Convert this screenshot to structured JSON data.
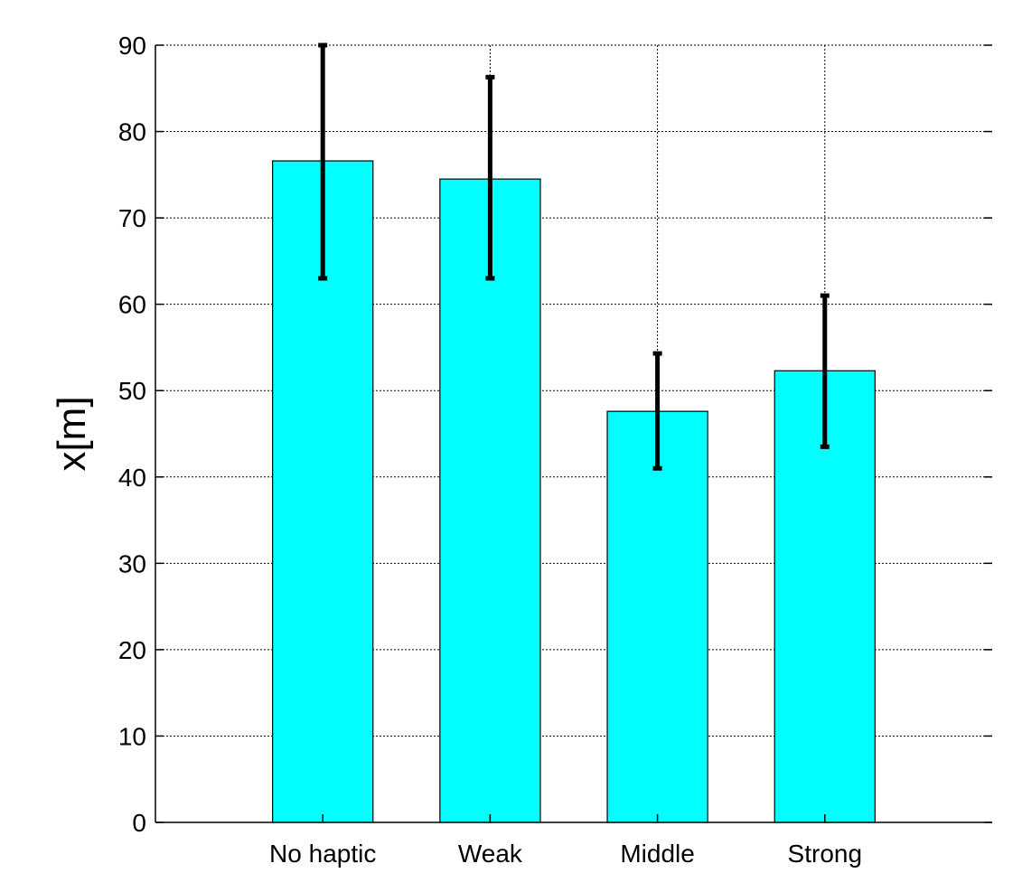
{
  "chart_data": {
    "type": "bar",
    "title": "",
    "xlabel": "",
    "ylabel": "x[m]",
    "categories": [
      "No haptic",
      "Weak",
      "Middle",
      "Strong"
    ],
    "values": [
      76.6,
      74.5,
      47.6,
      52.3
    ],
    "error_low": [
      63.0,
      63.0,
      41.0,
      43.5
    ],
    "error_high": [
      90.0,
      86.3,
      54.3,
      61.0
    ],
    "ylim": [
      0,
      90
    ],
    "xlim": [
      0,
      5
    ],
    "yticks": [
      0,
      10,
      20,
      30,
      40,
      50,
      60,
      70,
      80,
      90
    ],
    "grid": true,
    "colors": {
      "bar_fill": "#00FFFF",
      "bar_stroke": "#000000",
      "error_bar": "#000000",
      "grid": "#000000",
      "axis": "#000000"
    }
  }
}
